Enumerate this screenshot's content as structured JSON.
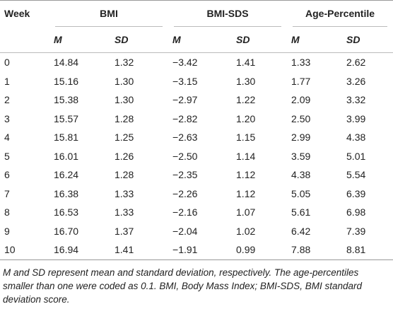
{
  "table": {
    "header": {
      "week": "Week",
      "groups": [
        "BMI",
        "BMI-SDS",
        "Age-Percentile"
      ],
      "subheaders": [
        "M",
        "SD",
        "M",
        "SD",
        "M",
        "SD"
      ]
    },
    "rows": [
      [
        "0",
        "14.84",
        "1.32",
        "−3.42",
        "1.41",
        "1.33",
        "2.62"
      ],
      [
        "1",
        "15.16",
        "1.30",
        "−3.15",
        "1.30",
        "1.77",
        "3.26"
      ],
      [
        "2",
        "15.38",
        "1.30",
        "−2.97",
        "1.22",
        "2.09",
        "3.32"
      ],
      [
        "3",
        "15.57",
        "1.28",
        "−2.82",
        "1.20",
        "2.50",
        "3.99"
      ],
      [
        "4",
        "15.81",
        "1.25",
        "−2.63",
        "1.15",
        "2.99",
        "4.38"
      ],
      [
        "5",
        "16.01",
        "1.26",
        "−2.50",
        "1.14",
        "3.59",
        "5.01"
      ],
      [
        "6",
        "16.24",
        "1.28",
        "−2.35",
        "1.12",
        "4.38",
        "5.54"
      ],
      [
        "7",
        "16.38",
        "1.33",
        "−2.26",
        "1.12",
        "5.05",
        "6.39"
      ],
      [
        "8",
        "16.53",
        "1.33",
        "−2.16",
        "1.07",
        "5.61",
        "6.98"
      ],
      [
        "9",
        "16.70",
        "1.37",
        "−2.04",
        "1.02",
        "6.42",
        "7.39"
      ],
      [
        "10",
        "16.94",
        "1.41",
        "−1.91",
        "0.99",
        "7.88",
        "8.81"
      ]
    ]
  },
  "footnote": "M and SD represent mean and standard deviation, respectively. The age-percentiles smaller than one were coded as 0.1. BMI, Body Mass Index; BMI-SDS, BMI standard deviation score."
}
